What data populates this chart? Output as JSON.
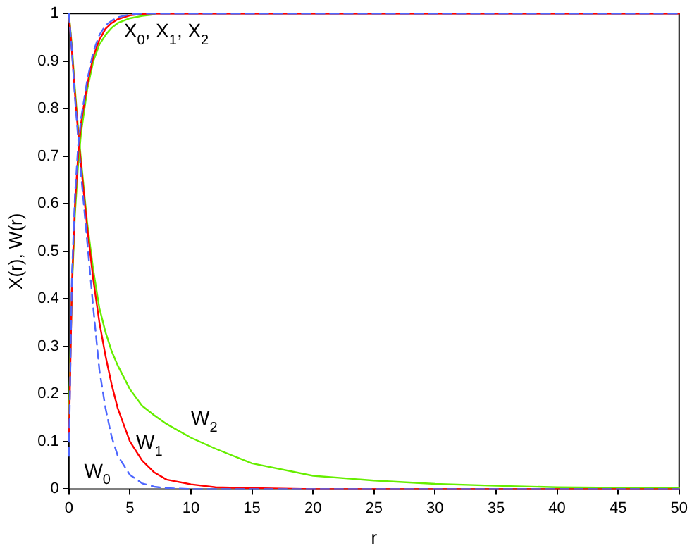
{
  "chart_data": {
    "type": "line",
    "xlabel": "r",
    "ylabel": "X(r), W(r)",
    "x": [
      0,
      0.25,
      0.5,
      0.75,
      1,
      1.5,
      2,
      2.5,
      3,
      3.5,
      4,
      5,
      6,
      7,
      8,
      10,
      12,
      15,
      20,
      25,
      30,
      35,
      40,
      45,
      50
    ],
    "series": [
      {
        "color": "#4d66ff",
        "line_style": "dashed",
        "values": [
          0.07,
          0.45,
          0.62,
          0.72,
          0.78,
          0.86,
          0.92,
          0.955,
          0.975,
          0.985,
          0.992,
          0.998,
          1,
          1,
          1,
          1,
          1,
          1,
          1,
          1,
          1,
          1,
          1,
          1,
          1
        ]
      },
      {
        "color": "#ff0000",
        "line_style": "solid",
        "values": [
          0.1,
          0.43,
          0.6,
          0.7,
          0.77,
          0.85,
          0.91,
          0.945,
          0.968,
          0.98,
          0.988,
          0.996,
          0.999,
          1,
          1,
          1,
          1,
          1,
          1,
          1,
          1,
          1,
          1,
          1,
          1
        ]
      },
      {
        "color": "#66ee00",
        "line_style": "solid",
        "values": [
          0.15,
          0.42,
          0.58,
          0.68,
          0.75,
          0.84,
          0.9,
          0.935,
          0.955,
          0.97,
          0.98,
          0.99,
          0.995,
          0.998,
          null,
          null,
          null,
          null,
          null,
          null,
          null,
          null,
          null,
          null,
          null
        ]
      },
      {
        "color": "#4d66ff",
        "line_style": "dashed",
        "values": [
          1,
          0.92,
          0.82,
          0.74,
          0.66,
          0.52,
          0.38,
          0.25,
          0.17,
          0.11,
          0.07,
          0.03,
          0.012,
          0.005,
          0.002,
          0,
          0,
          0,
          0,
          0,
          0,
          0,
          0,
          0,
          0
        ]
      },
      {
        "color": "#ff0000",
        "line_style": "solid",
        "values": [
          1,
          0.92,
          0.83,
          0.75,
          0.68,
          0.55,
          0.44,
          0.35,
          0.28,
          0.22,
          0.17,
          0.1,
          0.06,
          0.035,
          0.02,
          0.01,
          0.004,
          0.002,
          0,
          0,
          0,
          0,
          0,
          0,
          0
        ]
      },
      {
        "color": "#66ee00",
        "line_style": "solid",
        "values": [
          1,
          0.93,
          0.84,
          0.76,
          0.69,
          0.56,
          0.46,
          0.38,
          0.33,
          0.29,
          0.26,
          0.21,
          0.175,
          0.155,
          0.137,
          0.108,
          0.085,
          0.054,
          0.028,
          0.018,
          0.011,
          0.007,
          0.004,
          0.003,
          0.002
        ]
      }
    ],
    "xlim": [
      0,
      50
    ],
    "xticks": [
      0,
      5,
      10,
      15,
      20,
      25,
      30,
      35,
      40,
      45,
      50
    ],
    "ylim": [
      0,
      1
    ],
    "yticks": [
      0,
      0.1,
      0.2,
      0.3,
      0.4,
      0.5,
      0.6,
      0.7,
      0.8,
      0.9,
      1
    ],
    "grid": false,
    "legend": false,
    "marker": "none",
    "annotations": [
      "X$_{0}$, X$_{1}$, X$_{2}$",
      "W$_{0}$",
      "W$_{1}$",
      "W$_{2}$"
    ]
  }
}
